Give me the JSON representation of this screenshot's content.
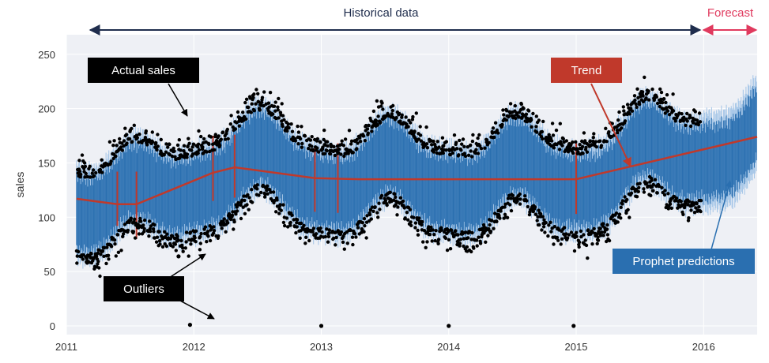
{
  "chart_data": {
    "type": "scatter",
    "title": "",
    "xlabel": "",
    "ylabel": "sales",
    "xlim": [
      2011.0,
      2016.42
    ],
    "ylim": [
      -8,
      268
    ],
    "grid": true,
    "x_ticks": [
      "2011",
      "2012",
      "2013",
      "2014",
      "2015",
      "2016"
    ],
    "y_ticks": [
      0,
      50,
      100,
      150,
      200,
      250
    ],
    "series": [
      {
        "kind": "scatter",
        "marker": "dots"
      },
      {
        "kind": "band",
        "color": "#2a6fb0"
      },
      {
        "kind": "line",
        "color": "#c0392b",
        "x": [
          2011.08,
          2011.4,
          2011.55,
          2012.15,
          2012.32,
          2012.95,
          2013.3,
          2015.0,
          2016.42
        ],
        "y": [
          117,
          112,
          112,
          141,
          146,
          136,
          135,
          135,
          174
        ]
      }
    ],
    "outliers": [
      {
        "x": 2011.88,
        "y": 64
      },
      {
        "x": 2011.97,
        "y": 1
      },
      {
        "x": 2013.0,
        "y": 0
      },
      {
        "x": 2014.0,
        "y": 0
      },
      {
        "x": 2014.98,
        "y": 0
      }
    ],
    "changepoints": [
      {
        "x": 2011.4,
        "lo": 92,
        "hi": 142
      },
      {
        "x": 2011.55,
        "lo": 80,
        "hi": 142
      },
      {
        "x": 2012.15,
        "lo": 115,
        "hi": 175
      },
      {
        "x": 2012.32,
        "lo": 118,
        "hi": 176
      },
      {
        "x": 2012.95,
        "lo": 105,
        "hi": 165
      },
      {
        "x": 2013.13,
        "lo": 104,
        "hi": 168
      },
      {
        "x": 2015.0,
        "lo": 103,
        "hi": 168
      }
    ],
    "spans": [
      {
        "label": "Historical data",
        "from": 2011.0,
        "to": 2015.98,
        "color": "#1f2d4d"
      },
      {
        "label": "Forecast",
        "from": 2015.98,
        "to": 2016.42,
        "color": "#e03a5e"
      }
    ],
    "annotations": [
      {
        "label": "Actual sales",
        "bg": "#000000",
        "fg": "#ffffff"
      },
      {
        "label": "Outliers",
        "bg": "#000000",
        "fg": "#ffffff"
      },
      {
        "label": "Trend",
        "bg": "#c0392b",
        "fg": "#ffffff"
      },
      {
        "label": "Prophet predictions",
        "bg": "#2a6fb0",
        "fg": "#ffffff"
      }
    ]
  }
}
